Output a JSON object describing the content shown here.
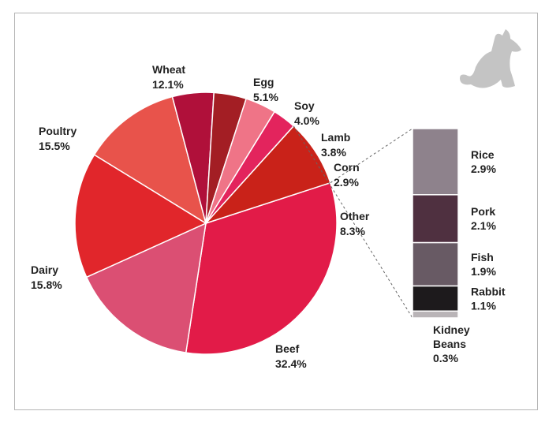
{
  "chart_data": {
    "type": "pie",
    "title": "",
    "slices": [
      {
        "label": "Beef",
        "value": 32.4,
        "value_label": "32.4%",
        "color": "#e21b48"
      },
      {
        "label": "Dairy",
        "value": 15.8,
        "value_label": "15.8%",
        "color": "#db4f73"
      },
      {
        "label": "Poultry",
        "value": 15.5,
        "value_label": "15.5%",
        "color": "#e1262b"
      },
      {
        "label": "Wheat",
        "value": 12.1,
        "value_label": "12.1%",
        "color": "#e8534b"
      },
      {
        "label": "Egg",
        "value": 5.1,
        "value_label": "5.1%",
        "color": "#b0103a"
      },
      {
        "label": "Soy",
        "value": 4.0,
        "value_label": "4.0%",
        "color": "#a31e24"
      },
      {
        "label": "Lamb",
        "value": 3.8,
        "value_label": "3.8%",
        "color": "#ef7487"
      },
      {
        "label": "Corn",
        "value": 2.9,
        "value_label": "2.9%",
        "color": "#e3245d"
      },
      {
        "label": "Other",
        "value": 8.3,
        "value_label": "8.3%",
        "color": "#c92219"
      }
    ],
    "breakdown": {
      "of": "Other",
      "segments": [
        {
          "label": "Rice",
          "value": 2.9,
          "value_label": "2.9%",
          "color": "#8e828c"
        },
        {
          "label": "Pork",
          "value": 2.1,
          "value_label": "2.1%",
          "color": "#4f3040"
        },
        {
          "label": "Fish",
          "value": 1.9,
          "value_label": "1.9%",
          "color": "#685a64"
        },
        {
          "label": "Rabbit",
          "value": 1.1,
          "value_label": "1.1%",
          "color": "#1d1a1c"
        },
        {
          "label": "Kidney Beans",
          "value": 0.3,
          "value_label": "0.3%",
          "color": "#b9b4b7"
        }
      ]
    }
  },
  "decor": {
    "icon": "dog-silhouette-icon",
    "icon_color": "#c4c4c4"
  }
}
